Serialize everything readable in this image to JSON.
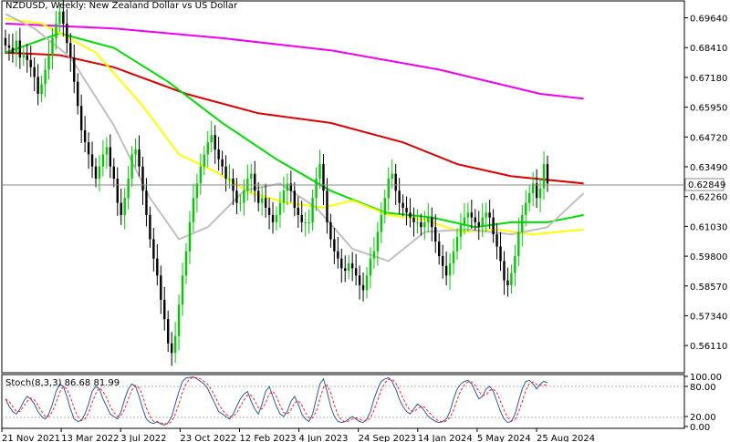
{
  "header": {
    "title": "NZDUSD, Weekly:  New Zealand Dollar vs US Dollar"
  },
  "price_axis": {
    "ticks": [
      "0.69640",
      "0.68410",
      "0.67180",
      "0.65950",
      "0.64720",
      "0.63490",
      "0.62260",
      "0.61030",
      "0.59800",
      "0.58570",
      "0.57340",
      "0.56110"
    ],
    "current_price": "0.62849"
  },
  "stoch_panel": {
    "label": "Stoch(8,3,3) 86.68 81.99",
    "ticks": [
      "100.00",
      "80.00",
      "20.00",
      "0.00"
    ]
  },
  "time_axis": {
    "labels": [
      "21 Nov 2021",
      "13 Mar 2022",
      "3 Jul 2022",
      "23 Oct 2022",
      "12 Feb 2023",
      "4 Jun 2023",
      "24 Sep 2023",
      "14 Jan 2024",
      "5 May 2024",
      "25 Aug 2024"
    ]
  },
  "colors": {
    "bull": "#00cc00",
    "bear": "#000000",
    "ma_yellow": "#ffff00",
    "ma_green": "#00dd00",
    "ma_red": "#dd0000",
    "ma_magenta": "#ee00ee",
    "ma_silver": "#c0c0c0",
    "stoch_main": "#2a5d9e",
    "stoch_signal": "#ff2222"
  },
  "chart_data": {
    "type": "candlestick",
    "symbol": "NZDUSD",
    "timeframe": "Weekly",
    "ylim": [
      0.551,
      0.703
    ],
    "closes": [
      0.685,
      0.684,
      0.682,
      0.687,
      0.68,
      0.681,
      0.679,
      0.676,
      0.672,
      0.665,
      0.669,
      0.675,
      0.681,
      0.688,
      0.694,
      0.699,
      0.694,
      0.686,
      0.68,
      0.67,
      0.66,
      0.65,
      0.645,
      0.64,
      0.635,
      0.63,
      0.635,
      0.64,
      0.643,
      0.635,
      0.63,
      0.62,
      0.615,
      0.622,
      0.63,
      0.64,
      0.642,
      0.635,
      0.625,
      0.615,
      0.605,
      0.597,
      0.59,
      0.58,
      0.572,
      0.562,
      0.558,
      0.565,
      0.578,
      0.59,
      0.6,
      0.612,
      0.622,
      0.628,
      0.635,
      0.64,
      0.645,
      0.648,
      0.642,
      0.638,
      0.635,
      0.63,
      0.63,
      0.625,
      0.62,
      0.62,
      0.625,
      0.63,
      0.632,
      0.625,
      0.62,
      0.622,
      0.618,
      0.615,
      0.612,
      0.615,
      0.62,
      0.625,
      0.628,
      0.625,
      0.618,
      0.615,
      0.612,
      0.612,
      0.612,
      0.622,
      0.63,
      0.636,
      0.625,
      0.612,
      0.605,
      0.6,
      0.597,
      0.593,
      0.592,
      0.595,
      0.593,
      0.59,
      0.586,
      0.584,
      0.59,
      0.597,
      0.6,
      0.608,
      0.615,
      0.622,
      0.63,
      0.632,
      0.625,
      0.62,
      0.618,
      0.616,
      0.614,
      0.612,
      0.612,
      0.61,
      0.612,
      0.614,
      0.61,
      0.604,
      0.598,
      0.594,
      0.59,
      0.595,
      0.6,
      0.606,
      0.611,
      0.614,
      0.616,
      0.614,
      0.612,
      0.61,
      0.614,
      0.616,
      0.614,
      0.607,
      0.602,
      0.596,
      0.588,
      0.586,
      0.591,
      0.598,
      0.608,
      0.615,
      0.62,
      0.624,
      0.628,
      0.622,
      0.626,
      0.636,
      0.628
    ],
    "ma_series": [
      {
        "color": "#ee00ee",
        "points": [
          [
            0,
            0.694
          ],
          [
            30,
            0.692
          ],
          [
            60,
            0.688
          ],
          [
            90,
            0.683
          ],
          [
            120,
            0.675
          ],
          [
            148,
            0.665
          ],
          [
            160,
            0.663
          ]
        ]
      },
      {
        "color": "#dd0000",
        "points": [
          [
            0,
            0.682
          ],
          [
            15,
            0.681
          ],
          [
            30,
            0.676
          ],
          [
            50,
            0.665
          ],
          [
            70,
            0.657
          ],
          [
            90,
            0.653
          ],
          [
            110,
            0.645
          ],
          [
            125,
            0.636
          ],
          [
            140,
            0.631
          ],
          [
            160,
            0.628
          ]
        ]
      },
      {
        "color": "#00dd00",
        "points": [
          [
            0,
            0.682
          ],
          [
            15,
            0.69
          ],
          [
            30,
            0.684
          ],
          [
            45,
            0.67
          ],
          [
            60,
            0.653
          ],
          [
            75,
            0.638
          ],
          [
            90,
            0.625
          ],
          [
            105,
            0.616
          ],
          [
            118,
            0.614
          ],
          [
            130,
            0.61
          ],
          [
            140,
            0.612
          ],
          [
            150,
            0.612
          ],
          [
            160,
            0.615
          ]
        ]
      },
      {
        "color": "#ffff00",
        "points": [
          [
            0,
            0.696
          ],
          [
            10,
            0.694
          ],
          [
            25,
            0.682
          ],
          [
            38,
            0.66
          ],
          [
            48,
            0.64
          ],
          [
            58,
            0.633
          ],
          [
            68,
            0.624
          ],
          [
            78,
            0.62
          ],
          [
            88,
            0.618
          ],
          [
            96,
            0.621
          ],
          [
            106,
            0.615
          ],
          [
            116,
            0.613
          ],
          [
            126,
            0.608
          ],
          [
            136,
            0.609
          ],
          [
            146,
            0.607
          ],
          [
            160,
            0.609
          ]
        ]
      },
      {
        "color": "#c0c0c0",
        "points": [
          [
            0,
            0.698
          ],
          [
            8,
            0.692
          ],
          [
            18,
            0.68
          ],
          [
            30,
            0.652
          ],
          [
            40,
            0.622
          ],
          [
            48,
            0.605
          ],
          [
            56,
            0.61
          ],
          [
            66,
            0.625
          ],
          [
            76,
            0.628
          ],
          [
            86,
            0.618
          ],
          [
            96,
            0.601
          ],
          [
            106,
            0.596
          ],
          [
            116,
            0.608
          ],
          [
            128,
            0.609
          ],
          [
            140,
            0.607
          ],
          [
            150,
            0.61
          ],
          [
            160,
            0.624
          ]
        ]
      }
    ],
    "stoch": {
      "k": [
        55,
        40,
        30,
        25,
        35,
        50,
        60,
        55,
        45,
        30,
        20,
        15,
        25,
        45,
        70,
        85,
        80,
        60,
        35,
        15,
        10,
        12,
        25,
        45,
        70,
        80,
        75,
        55,
        40,
        25,
        20,
        15,
        30,
        55,
        75,
        85,
        80,
        60,
        35,
        15,
        8,
        6,
        10,
        5,
        3,
        8,
        20,
        45,
        70,
        90,
        97,
        98,
        99,
        95,
        90,
        85,
        75,
        60,
        45,
        30,
        25,
        20,
        15,
        25,
        40,
        55,
        65,
        70,
        50,
        35,
        25,
        45,
        70,
        80,
        60,
        40,
        25,
        20,
        30,
        50,
        60,
        45,
        25,
        15,
        10,
        25,
        55,
        85,
        95,
        70,
        40,
        20,
        10,
        8,
        10,
        15,
        20,
        15,
        10,
        8,
        15,
        30,
        55,
        75,
        90,
        95,
        97,
        90,
        75,
        55,
        40,
        30,
        25,
        35,
        45,
        40,
        30,
        20,
        15,
        10,
        8,
        10,
        15,
        30,
        55,
        75,
        85,
        90,
        92,
        85,
        70,
        55,
        60,
        75,
        80,
        70,
        50,
        30,
        15,
        8,
        10,
        25,
        50,
        75,
        90,
        92,
        85,
        75,
        85,
        90,
        87
      ],
      "d": [
        55,
        50,
        40,
        30,
        30,
        40,
        50,
        57,
        53,
        43,
        30,
        20,
        20,
        30,
        48,
        68,
        80,
        75,
        58,
        37,
        20,
        12,
        15,
        27,
        48,
        66,
        77,
        70,
        57,
        40,
        28,
        20,
        22,
        35,
        55,
        73,
        82,
        77,
        60,
        37,
        20,
        10,
        8,
        7,
        6,
        5,
        10,
        25,
        45,
        68,
        86,
        95,
        98,
        97,
        95,
        90,
        84,
        73,
        60,
        45,
        33,
        25,
        20,
        20,
        27,
        40,
        53,
        63,
        62,
        52,
        37,
        35,
        47,
        65,
        70,
        60,
        42,
        28,
        25,
        33,
        47,
        52,
        43,
        28,
        17,
        17,
        30,
        55,
        78,
        83,
        68,
        43,
        23,
        13,
        9,
        11,
        15,
        17,
        15,
        11,
        11,
        18,
        33,
        53,
        73,
        87,
        94,
        94,
        87,
        73,
        57,
        42,
        32,
        30,
        35,
        40,
        38,
        30,
        22,
        15,
        11,
        9,
        11,
        18,
        33,
        53,
        72,
        83,
        89,
        89,
        82,
        70,
        62,
        63,
        72,
        75,
        67,
        50,
        32,
        18,
        11,
        14,
        28,
        50,
        72,
        86,
        89,
        84,
        82,
        83,
        82
      ],
      "levels": [
        80,
        20
      ]
    }
  }
}
